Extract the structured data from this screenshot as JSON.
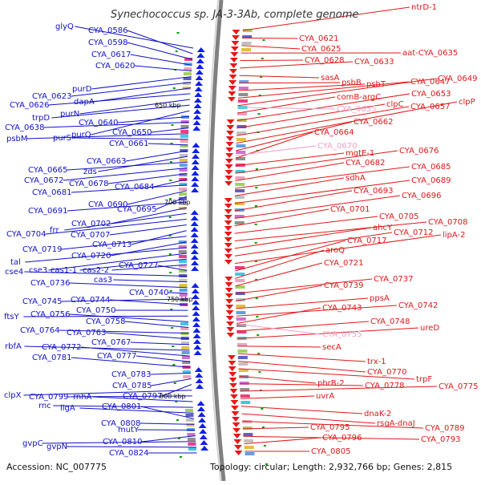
{
  "title": "Synechococcus sp. JA-3-3Ab, complete genome",
  "footer": {
    "accession": "Accession: NC_007775",
    "summary": "Topology: circular; Length: 2,932,766 bp; Genes: 2,815"
  },
  "scale_labels": [
    "650 kbp",
    "700 kbp",
    "750 kbp",
    "800 kbp"
  ],
  "colors": {
    "left_labels": "#1010c8",
    "right_labels": "#e01818",
    "pseudo_labels": "#f0a0c8",
    "backbone": "#808080",
    "tick": "#00a000"
  },
  "left_labels": [
    "glyQ",
    "CYA_0586",
    "CYA_0598",
    "CYA_0617",
    "CYA_0620",
    "purD",
    "CYA_0623",
    "dapA",
    "CYA_0626",
    "purN",
    "trpD",
    "purQ",
    "CYA_0640",
    "CYA_0638",
    "CYA_0650",
    "psbM",
    "purS",
    "CYA_0661",
    "CYA_0663",
    "zds",
    "CYA_0665",
    "CYA_0672",
    "CYA_0678",
    "CYA_0684",
    "CYA_0681",
    "CYA_0690",
    "CYA_0695",
    "CYA_0691",
    "CYA_0702",
    "frr",
    "CYA_0704",
    "CYA_0707",
    "CYA_0713",
    "CYA_0719",
    "CYA_0720",
    "tal",
    "cse3",
    "cas1-1",
    "cas2-2",
    "CYA_0727",
    "cse4",
    "cas3",
    "CYA_0736",
    "CYA_0740",
    "CYA_0745",
    "CYA_0744",
    "CYA_0750",
    "ftsY",
    "CYA_0756",
    "CYA_0758",
    "CYA_0764",
    "CYA_0763",
    "CYA_0767",
    "rbfA",
    "CYA_0772",
    "CYA_0777",
    "CYA_0781",
    "CYA_0783",
    "CYA_0785",
    "CYA_0797",
    "clpX",
    "CYA_0799",
    "rnhA",
    "rnc",
    "ligA",
    "CYA_0801",
    "CYA_0808",
    "mutY",
    "CYA_0810",
    "gvpC",
    "gvpN",
    "CYA_0824"
  ],
  "right_labels": [
    "ntrD-1",
    "CYA_0621",
    "CYA_0625",
    "aat-CYA_0635",
    "CYA_0628",
    "CYA_0633",
    "sasA",
    "psbB",
    "psbT",
    "CYA_0647",
    "CYA_0649",
    "comB-argC",
    "CYA_0653",
    "clpC",
    "CYA_0657",
    "clpP",
    "CYA_0662",
    "CYA_0664",
    "mgtE-1",
    "CYA_0676",
    "CYA_0682",
    "CYA_0685",
    "sdhA",
    "CYA_0689",
    "CYA_0693",
    "CYA_0696",
    "CYA_0701",
    "CYA_0705",
    "CYA_0708",
    "ahcY",
    "CYA_0712",
    "lipA-2",
    "CYA_0717",
    "aroQ",
    "CYA_0721",
    "CYA_0737",
    "CYA_0739",
    "ppsA",
    "CYA_0742",
    "CYA_0743",
    "CYA_0748",
    "ureD",
    "secA",
    "trx-1",
    "CYA_0770",
    "trpF",
    "phrB-2",
    "CYA_0778",
    "CYA_0775",
    "uvrA",
    "dnaK-2",
    "rsgA-dnaJ",
    "CYA_0789",
    "CYA_0795",
    "CYA_0793",
    "CYA_0796",
    "CYA_0805"
  ],
  "pseudo_labels": [
    "CYA_0655",
    "CYA_0670",
    "CYA_0755"
  ]
}
